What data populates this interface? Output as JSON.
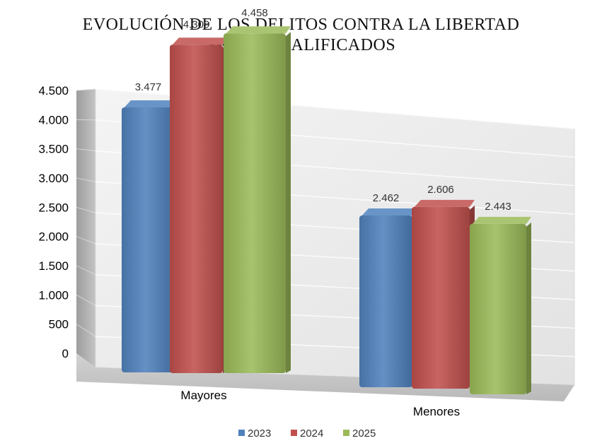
{
  "chart_data": {
    "type": "bar",
    "title_lines": [
      "EVOLUCIÓN DE LOS DELITOS CONTRA LA LIBERTAD",
      "SEXUAL CALIFICADOS"
    ],
    "categories": [
      "Mayores",
      "Menores"
    ],
    "series": [
      {
        "name": "2023",
        "values": [
          3477,
          2462
        ],
        "labels": [
          "3.477",
          "2.462"
        ],
        "color": "#4F81BD"
      },
      {
        "name": "2024",
        "values": [
          4309,
          2606
        ],
        "labels": [
          "4.309",
          "2.606"
        ],
        "color": "#C0504D"
      },
      {
        "name": "2025",
        "values": [
          4458,
          2443
        ],
        "labels": [
          "4.458",
          "2.443"
        ],
        "color": "#9BBB59"
      }
    ],
    "ylim": [
      0,
      4500
    ],
    "y_ticks": [
      0,
      500,
      1000,
      1500,
      2000,
      2500,
      3000,
      3500,
      4000,
      4500
    ],
    "y_tick_labels": [
      "0",
      "500",
      "1.000",
      "1.500",
      "2.000",
      "2.500",
      "3.000",
      "3.500",
      "4.000",
      "4.500"
    ],
    "grid": true,
    "legend_position": "bottom",
    "style": "3d"
  }
}
